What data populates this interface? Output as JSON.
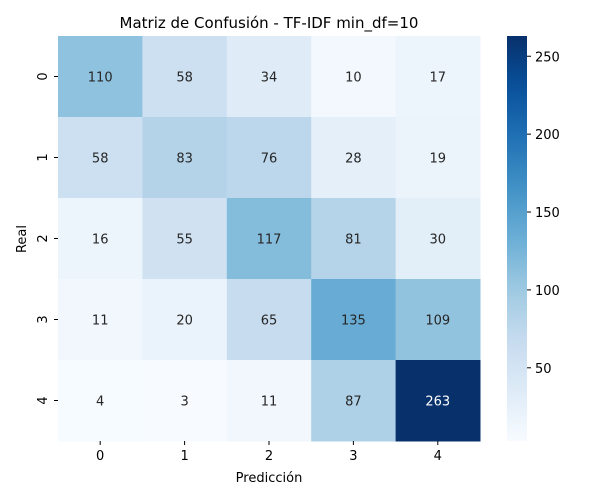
{
  "chart_data": {
    "type": "heatmap",
    "title": "Matriz de Confusión - TF-IDF min_df=10",
    "xlabel": "Predicción",
    "ylabel": "Real",
    "x_categories": [
      "0",
      "1",
      "2",
      "3",
      "4"
    ],
    "y_categories": [
      "0",
      "1",
      "2",
      "3",
      "4"
    ],
    "values": [
      [
        110,
        58,
        34,
        10,
        17
      ],
      [
        58,
        83,
        76,
        28,
        19
      ],
      [
        16,
        55,
        117,
        81,
        30
      ],
      [
        11,
        20,
        65,
        135,
        109
      ],
      [
        4,
        3,
        11,
        87,
        263
      ]
    ],
    "colorscale": "Blues",
    "vmin": 3,
    "vmax": 263,
    "colorbar_ticks": [
      50,
      100,
      150,
      200,
      250
    ],
    "grid": false
  }
}
